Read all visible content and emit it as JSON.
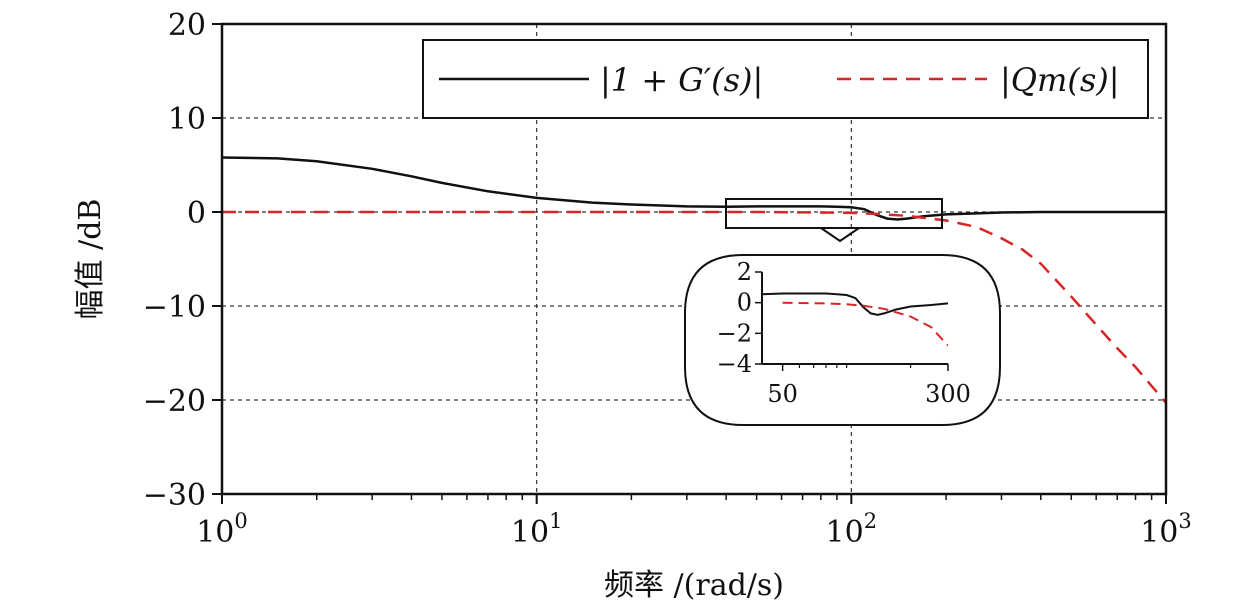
{
  "chart_data": {
    "type": "line",
    "xlabel": "频率 /(rad/s)",
    "ylabel": "幅值 /dB",
    "x_scale": "log",
    "xlim": [
      1,
      1000
    ],
    "ylim": [
      -30,
      20
    ],
    "grid": true,
    "legend_position": "top-right",
    "x_ticks": [
      1,
      10,
      100,
      1000
    ],
    "x_tick_labels": [
      {
        "base": "10",
        "exp": "0"
      },
      {
        "base": "10",
        "exp": "1"
      },
      {
        "base": "10",
        "exp": "2"
      },
      {
        "base": "10",
        "exp": "3"
      }
    ],
    "y_ticks": [
      20,
      10,
      0,
      -10,
      -20,
      -30
    ],
    "y_tick_labels": [
      "20",
      "10",
      "0",
      "−10",
      "−20",
      "−30"
    ],
    "series": [
      {
        "name": "|1 + G′(s)|",
        "color": "#111111",
        "style": "solid",
        "x": [
          1,
          1.5,
          2,
          3,
          4,
          5,
          7,
          10,
          15,
          20,
          30,
          40,
          50,
          60,
          70,
          80,
          90,
          100,
          110,
          120,
          130,
          140,
          150,
          170,
          200,
          250,
          300,
          400,
          500,
          700,
          1000
        ],
        "y": [
          5.8,
          5.7,
          5.4,
          4.6,
          3.8,
          3.1,
          2.2,
          1.5,
          1.0,
          0.8,
          0.6,
          0.55,
          0.6,
          0.6,
          0.6,
          0.6,
          0.55,
          0.5,
          0.3,
          -0.3,
          -0.7,
          -0.8,
          -0.7,
          -0.45,
          -0.25,
          -0.15,
          -0.05,
          0.0,
          0.0,
          0.0,
          0.0
        ]
      },
      {
        "name": "|Qm(s)|",
        "color": "#d62728",
        "style": "dashed",
        "x": [
          1,
          10,
          50,
          80,
          100,
          120,
          150,
          200,
          250,
          300,
          350,
          400,
          500,
          600,
          700,
          800,
          900,
          1000
        ],
        "y": [
          0,
          0,
          0,
          -0.05,
          -0.1,
          -0.2,
          -0.4,
          -0.9,
          -1.6,
          -2.8,
          -4.0,
          -5.5,
          -9.0,
          -12.0,
          -14.5,
          -16.5,
          -18.5,
          -20.3
        ]
      }
    ],
    "inset": {
      "xlim": [
        40,
        300
      ],
      "ylim": [
        -4,
        2
      ],
      "y_ticks": [
        2,
        0,
        -2,
        -4
      ],
      "y_tick_labels": [
        "2",
        "0",
        "−2",
        "−4"
      ],
      "x_ticks": [
        50,
        300
      ],
      "x_tick_labels": [
        "50",
        "300"
      ]
    }
  }
}
